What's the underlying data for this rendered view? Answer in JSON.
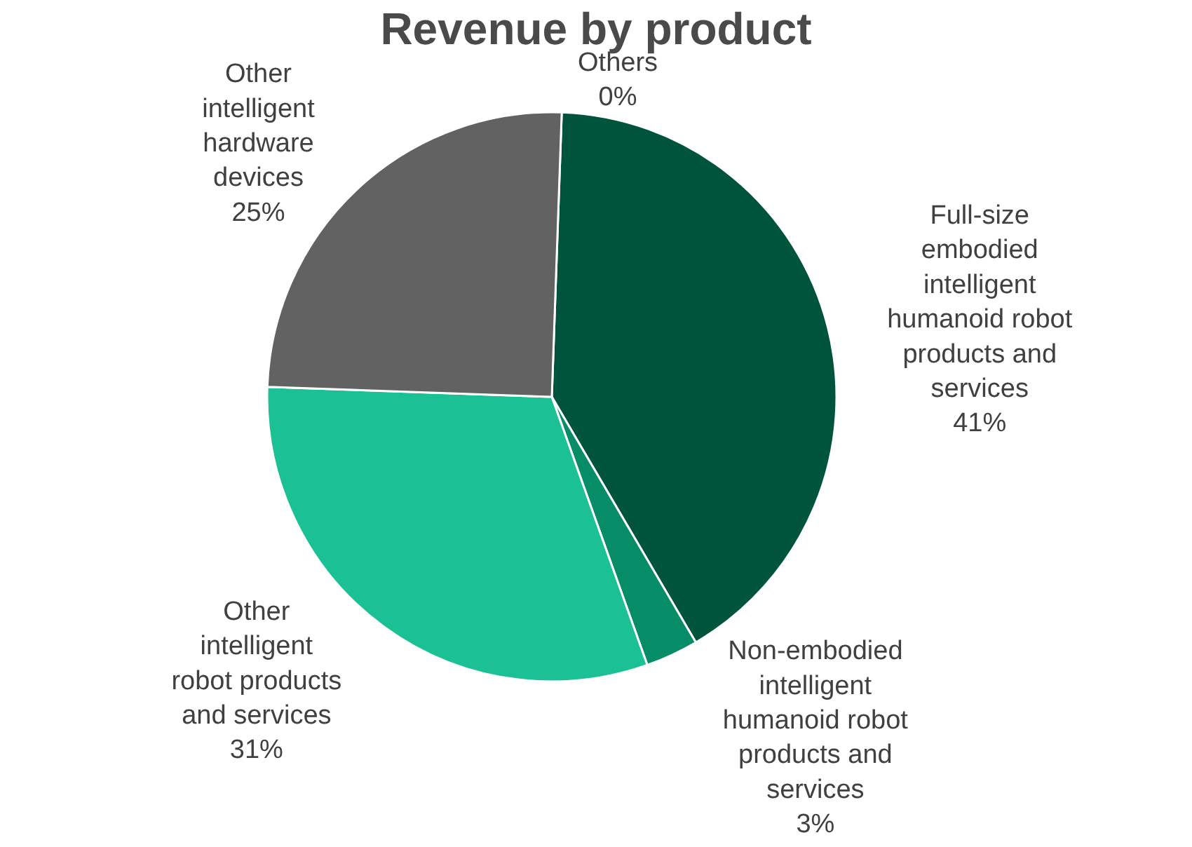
{
  "chart_data": {
    "type": "pie",
    "title": "Revenue by product",
    "categories": [
      "Others",
      "Full-size embodied intelligent humanoid robot products and services",
      "Non-embodied intelligent humanoid robot products and services",
      "Other intelligent robot products and services",
      "Other intelligent hardware devices"
    ],
    "values": [
      0,
      41,
      3,
      31,
      25
    ],
    "value_labels": [
      "0%",
      "41%",
      "3%",
      "31%",
      "25%"
    ],
    "colors": [
      "#b3b3b3",
      "#00543c",
      "#078c68",
      "#1bc095",
      "#626262"
    ],
    "legend": false
  }
}
